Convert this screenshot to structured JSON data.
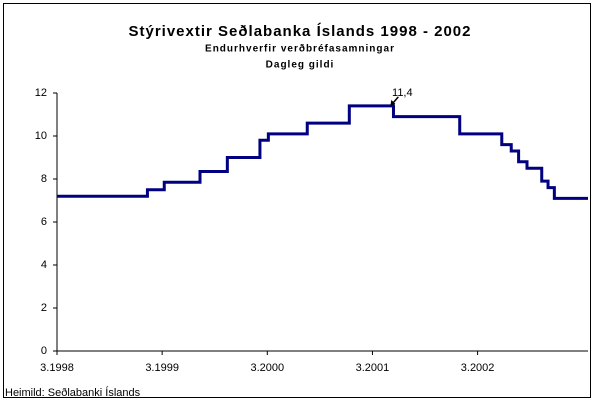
{
  "chart_data": {
    "type": "step",
    "title": "Stýrivextir Seðlabanka Íslands 1998 - 2002",
    "subtitle": "Endurhverfir verðbréfasamningar",
    "subtitle2": "Dagleg gildi",
    "source": "Heimild: Seðlabanki Íslands",
    "x": [
      1998.17,
      1999.03,
      1999.19,
      1999.53,
      1999.79,
      2000.1,
      2000.18,
      2000.55,
      2000.95,
      2001.37,
      2002.0,
      2002.4,
      2002.49,
      2002.56,
      2002.64,
      2002.78,
      2002.84,
      2002.9,
      2003.22
    ],
    "series": [
      {
        "name": "Stýrivextir",
        "color": "#000080",
        "values": [
          7.2,
          7.5,
          7.85,
          8.35,
          9.0,
          9.8,
          10.1,
          10.6,
          11.4,
          10.9,
          10.1,
          9.6,
          9.3,
          8.8,
          8.5,
          7.9,
          7.6,
          7.1,
          7.1
        ]
      }
    ],
    "xlim": [
      1998.17,
      2003.22
    ],
    "xticks": [
      {
        "value": 1998.17,
        "label": "3.1998"
      },
      {
        "value": 1999.17,
        "label": "3.1999"
      },
      {
        "value": 2000.17,
        "label": "3.2000"
      },
      {
        "value": 2001.17,
        "label": "3.2001"
      },
      {
        "value": 2002.17,
        "label": "3.2002"
      }
    ],
    "ylim": [
      0,
      12
    ],
    "yticks": [
      0,
      2,
      4,
      6,
      8,
      10,
      12
    ],
    "grid": false,
    "annotations": [
      {
        "text": "11,4",
        "x": 2001.34,
        "y": 11.4
      }
    ]
  }
}
